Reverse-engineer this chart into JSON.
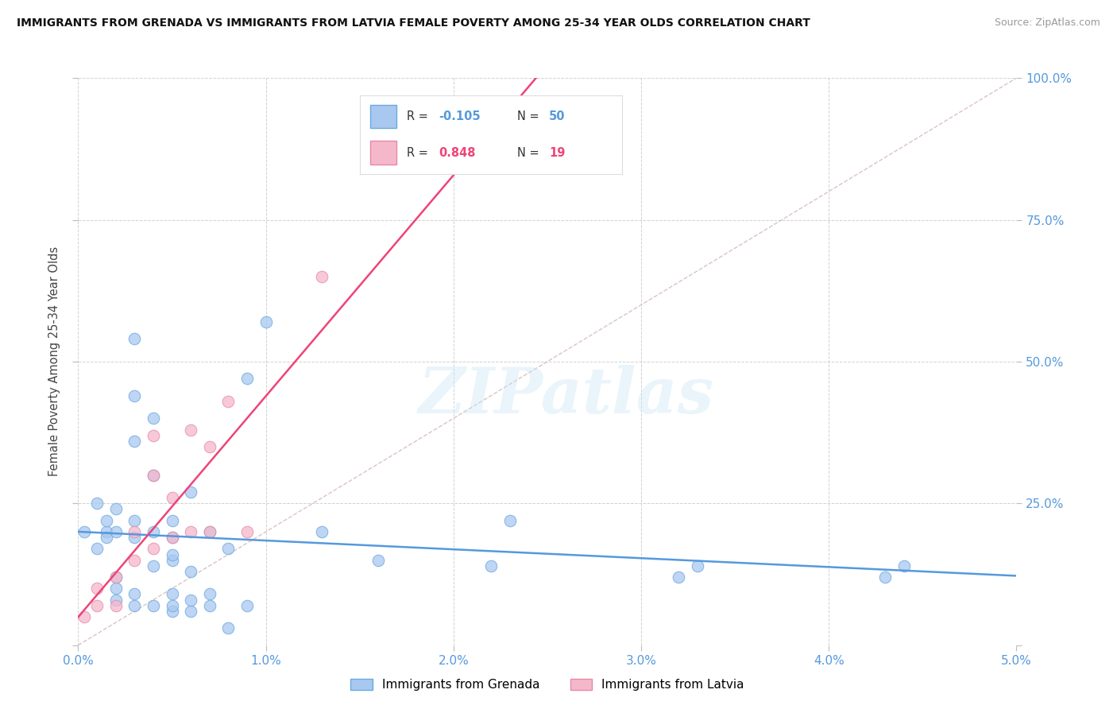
{
  "title": "IMMIGRANTS FROM GRENADA VS IMMIGRANTS FROM LATVIA FEMALE POVERTY AMONG 25-34 YEAR OLDS CORRELATION CHART",
  "source": "Source: ZipAtlas.com",
  "ylabel": "Female Poverty Among 25-34 Year Olds",
  "xlim": [
    0.0,
    0.05
  ],
  "ylim": [
    0.0,
    1.0
  ],
  "xticks": [
    0.0,
    0.01,
    0.02,
    0.03,
    0.04,
    0.05
  ],
  "yticks": [
    0.0,
    0.25,
    0.5,
    0.75,
    1.0
  ],
  "xtick_labels": [
    "0.0%",
    "1.0%",
    "2.0%",
    "3.0%",
    "4.0%",
    "5.0%"
  ],
  "ytick_labels": [
    "",
    "25.0%",
    "50.0%",
    "75.0%",
    "100.0%"
  ],
  "grenada_color": "#a8c8f0",
  "latvia_color": "#f5b8cb",
  "grenada_edge": "#6aaae0",
  "latvia_edge": "#e888a8",
  "trend_grenada_color": "#5599dd",
  "trend_latvia_color": "#ee4477",
  "diagonal_color": "#ccaaaa",
  "R_grenada": -0.105,
  "N_grenada": 50,
  "R_latvia": 0.848,
  "N_latvia": 19,
  "legend_label_grenada": "Immigrants from Grenada",
  "legend_label_latvia": "Immigrants from Latvia",
  "watermark": "ZIPatlas",
  "grenada_x": [
    0.0003,
    0.001,
    0.001,
    0.0015,
    0.0015,
    0.0015,
    0.002,
    0.002,
    0.002,
    0.002,
    0.002,
    0.003,
    0.003,
    0.003,
    0.003,
    0.003,
    0.003,
    0.003,
    0.004,
    0.004,
    0.004,
    0.004,
    0.004,
    0.005,
    0.005,
    0.005,
    0.005,
    0.005,
    0.005,
    0.005,
    0.006,
    0.006,
    0.006,
    0.006,
    0.007,
    0.007,
    0.007,
    0.008,
    0.008,
    0.009,
    0.009,
    0.01,
    0.013,
    0.016,
    0.022,
    0.023,
    0.032,
    0.033,
    0.043,
    0.044
  ],
  "grenada_y": [
    0.2,
    0.17,
    0.25,
    0.2,
    0.22,
    0.19,
    0.08,
    0.1,
    0.12,
    0.2,
    0.24,
    0.07,
    0.09,
    0.19,
    0.22,
    0.36,
    0.44,
    0.54,
    0.07,
    0.14,
    0.2,
    0.4,
    0.3,
    0.06,
    0.07,
    0.09,
    0.15,
    0.16,
    0.19,
    0.22,
    0.06,
    0.08,
    0.13,
    0.27,
    0.07,
    0.09,
    0.2,
    0.03,
    0.17,
    0.07,
    0.47,
    0.57,
    0.2,
    0.15,
    0.14,
    0.22,
    0.12,
    0.14,
    0.12,
    0.14
  ],
  "latvia_x": [
    0.0003,
    0.001,
    0.001,
    0.002,
    0.002,
    0.003,
    0.003,
    0.004,
    0.004,
    0.004,
    0.005,
    0.005,
    0.006,
    0.006,
    0.007,
    0.007,
    0.008,
    0.009,
    0.013
  ],
  "latvia_y": [
    0.05,
    0.07,
    0.1,
    0.07,
    0.12,
    0.15,
    0.2,
    0.17,
    0.3,
    0.37,
    0.19,
    0.26,
    0.2,
    0.38,
    0.2,
    0.35,
    0.43,
    0.2,
    0.65
  ]
}
